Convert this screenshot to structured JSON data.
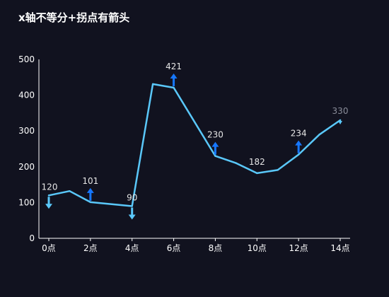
{
  "chart_data": {
    "type": "line",
    "title": "x轴不等分+拐点有箭头",
    "xlabel": "",
    "ylabel": "",
    "x_tick_labels": [
      "0点",
      "2点",
      "4点",
      "6点",
      "8点",
      "10点",
      "12点",
      "14点"
    ],
    "x_tick_values": [
      0,
      2,
      4,
      6,
      8,
      10,
      12,
      14
    ],
    "xlim": [
      0,
      14
    ],
    "ylim": [
      0,
      500
    ],
    "y_ticks": [
      0,
      100,
      200,
      300,
      400,
      500
    ],
    "grid": false,
    "legend": "none",
    "series": [
      {
        "x": [
          0,
          1,
          2,
          4,
          5,
          6,
          8,
          9,
          10,
          11,
          12,
          13,
          14
        ],
        "values": [
          120,
          132,
          101,
          90,
          431,
          421,
          230,
          210,
          182,
          191,
          234,
          290,
          330
        ]
      }
    ],
    "annotations": [
      {
        "x": 0,
        "y": 120,
        "label": "120",
        "arrow": "down"
      },
      {
        "x": 2,
        "y": 101,
        "label": "101",
        "arrow": "up"
      },
      {
        "x": 4,
        "y": 90,
        "label": "90",
        "arrow": "down"
      },
      {
        "x": 6,
        "y": 421,
        "label": "421",
        "arrow": "up"
      },
      {
        "x": 8,
        "y": 230,
        "label": "230",
        "arrow": "up"
      },
      {
        "x": 10,
        "y": 182,
        "label": "182",
        "arrow": "none"
      },
      {
        "x": 12,
        "y": 234,
        "label": "234",
        "arrow": "up"
      },
      {
        "x": 14,
        "y": 330,
        "label": "330",
        "arrow": "end"
      }
    ],
    "colors": {
      "background": "#11121f",
      "line": "#5ac8fa",
      "arrow_up": "#1677ff",
      "arrow_down": "#5ac8fa",
      "axis": "#ffffff",
      "label": "#e6e6e6",
      "end_label": "#8a8d99"
    }
  }
}
